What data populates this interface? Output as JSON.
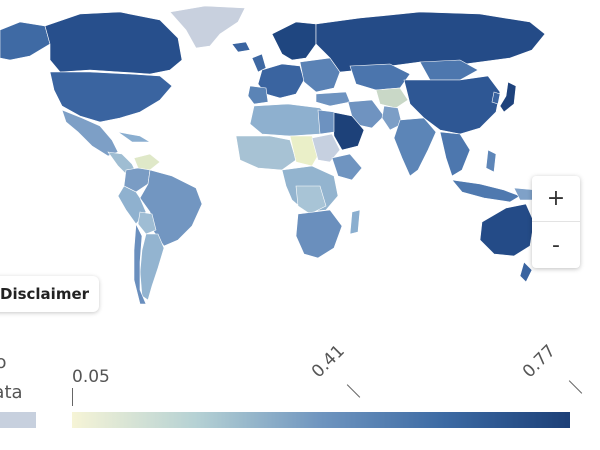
{
  "map": {
    "zoom_in_label": "+",
    "zoom_out_label": "-",
    "disclaimer_label": "Disclaimer"
  },
  "legend": {
    "no_data_label": "No data",
    "no_data_color": "#c7d0de",
    "ticks": [
      "0.05",
      "0.41",
      "0.77"
    ],
    "scale_min": 0.05,
    "scale_max": 0.77,
    "scale_colors": [
      "#f6f4d6",
      "#b5d1d4",
      "#6f95bf",
      "#3c6aa3",
      "#1c3f77"
    ]
  }
}
